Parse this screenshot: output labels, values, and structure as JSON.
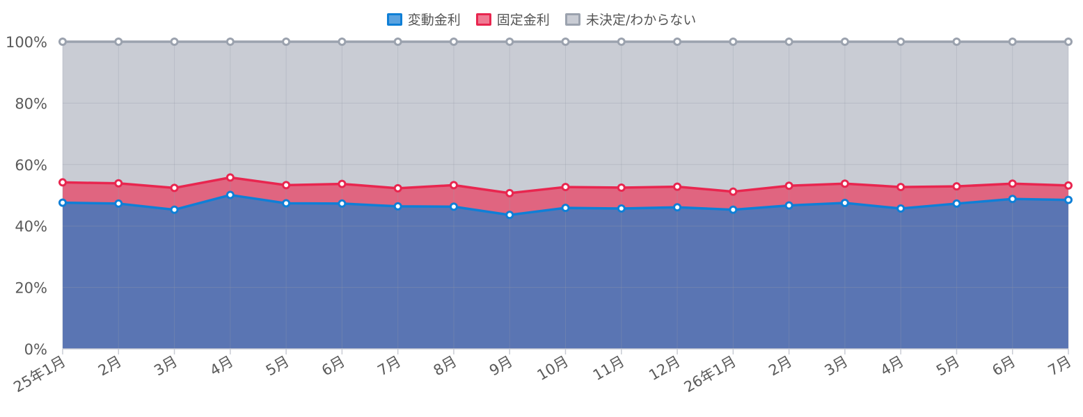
{
  "chart_data": {
    "type": "area",
    "stacked": true,
    "categories": [
      "25年1月",
      "2月",
      "3月",
      "4月",
      "5月",
      "6月",
      "7月",
      "8月",
      "9月",
      "10月",
      "11月",
      "12月",
      "26年1月",
      "2月",
      "3月",
      "4月",
      "5月",
      "6月",
      "7月"
    ],
    "series": [
      {
        "name": "変動金利",
        "values": [
          47.6,
          47.3,
          45.3,
          50.1,
          47.4,
          47.3,
          46.4,
          46.3,
          43.6,
          45.9,
          45.7,
          46.1,
          45.3,
          46.7,
          47.5,
          45.7,
          47.3,
          48.8,
          48.5
        ],
        "line_color": "#0f7fd6",
        "fill_color": "#5a75b3",
        "swatch_fill": "#5ba3e0"
      },
      {
        "name": "固定金利",
        "values": [
          6.6,
          6.6,
          7.1,
          5.7,
          5.9,
          6.4,
          5.9,
          7.0,
          7.1,
          6.8,
          6.8,
          6.7,
          5.9,
          6.4,
          6.3,
          7.0,
          5.6,
          5.0,
          4.7
        ],
        "line_color": "#e8264f",
        "fill_color": "#e06580",
        "swatch_fill": "#f07a93"
      },
      {
        "name": "未決定/わからない",
        "values": [
          45.8,
          46.1,
          47.6,
          44.2,
          46.7,
          46.3,
          47.7,
          46.7,
          49.3,
          47.3,
          47.5,
          47.2,
          48.8,
          46.9,
          46.2,
          47.3,
          47.1,
          46.2,
          46.8
        ],
        "line_color": "#9ba2ae",
        "fill_color": "#c9ccd4",
        "swatch_fill": "#c9ccd4"
      }
    ],
    "yticks": [
      "0%",
      "20%",
      "40%",
      "60%",
      "80%",
      "100%"
    ],
    "ylim": [
      0,
      100
    ],
    "grid": true,
    "legend_position": "top-center"
  }
}
